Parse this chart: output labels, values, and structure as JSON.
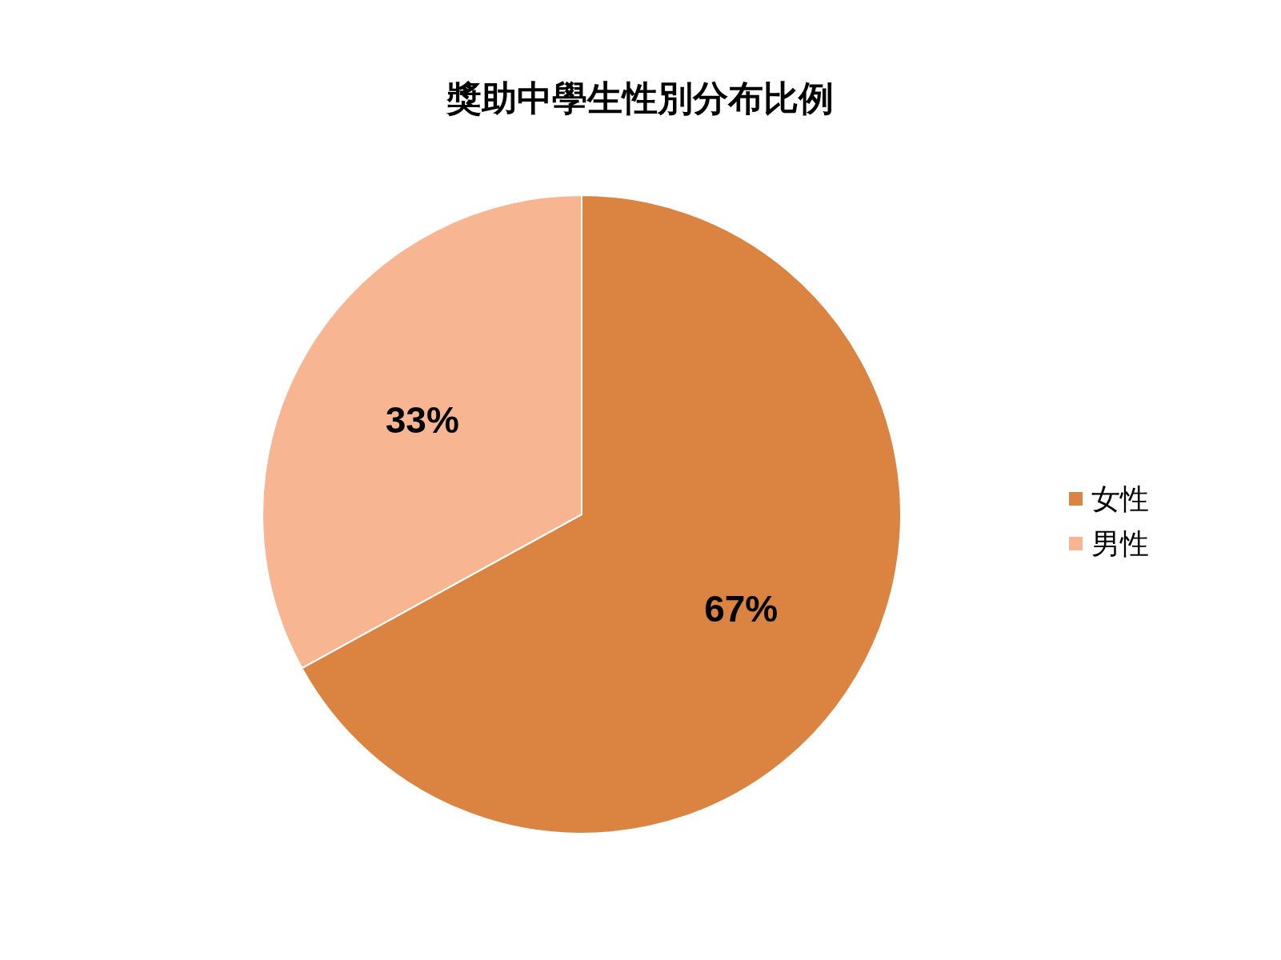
{
  "chart_data": {
    "type": "pie",
    "title": "獎助中學生性別分布比例",
    "categories": [
      "女性",
      "男性"
    ],
    "values": [
      67,
      33
    ],
    "colors": [
      "#db8340",
      "#f8b592"
    ],
    "value_labels": [
      "67%",
      "33%"
    ],
    "legend": "right"
  }
}
